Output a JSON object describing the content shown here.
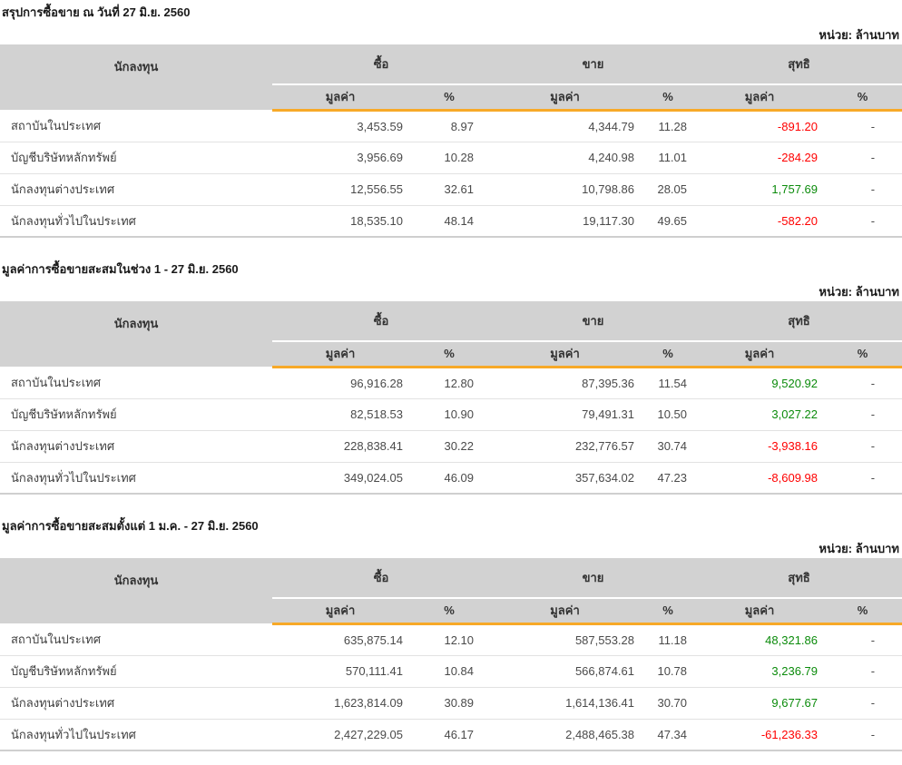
{
  "columns": {
    "investor": "นักลงทุน",
    "buy": "ซื้อ",
    "sell": "ขาย",
    "net": "สุทธิ",
    "value": "มูลค่า",
    "percent": "%"
  },
  "colors": {
    "header_bg": "#D2D2D2",
    "accent_orange": "#F7A928",
    "negative_red": "#FF0000",
    "positive_green": "#0B8B0B"
  },
  "tables": [
    {
      "title": "สรุปการซื้อขาย ณ วันที่ 27 มิ.ย. 2560",
      "unit": "หน่วย: ล้านบาท",
      "rows": [
        {
          "investor": "สถาบันในประเทศ",
          "buy_value": "3,453.59",
          "buy_pct": "8.97",
          "sell_value": "4,344.79",
          "sell_pct": "11.28",
          "net_value": "-891.20",
          "net_pct": "-",
          "net_class": "neg"
        },
        {
          "investor": "บัญชีบริษัทหลักทรัพย์",
          "buy_value": "3,956.69",
          "buy_pct": "10.28",
          "sell_value": "4,240.98",
          "sell_pct": "11.01",
          "net_value": "-284.29",
          "net_pct": "-",
          "net_class": "neg"
        },
        {
          "investor": "นักลงทุนต่างประเทศ",
          "buy_value": "12,556.55",
          "buy_pct": "32.61",
          "sell_value": "10,798.86",
          "sell_pct": "28.05",
          "net_value": "1,757.69",
          "net_pct": "-",
          "net_class": "pos"
        },
        {
          "investor": "นักลงทุนทั่วไปในประเทศ",
          "buy_value": "18,535.10",
          "buy_pct": "48.14",
          "sell_value": "19,117.30",
          "sell_pct": "49.65",
          "net_value": "-582.20",
          "net_pct": "-",
          "net_class": "neg"
        }
      ]
    },
    {
      "title": "มูลค่าการซื้อขายสะสมในช่วง 1 - 27 มิ.ย. 2560",
      "unit": "หน่วย: ล้านบาท",
      "rows": [
        {
          "investor": "สถาบันในประเทศ",
          "buy_value": "96,916.28",
          "buy_pct": "12.80",
          "sell_value": "87,395.36",
          "sell_pct": "11.54",
          "net_value": "9,520.92",
          "net_pct": "-",
          "net_class": "pos"
        },
        {
          "investor": "บัญชีบริษัทหลักทรัพย์",
          "buy_value": "82,518.53",
          "buy_pct": "10.90",
          "sell_value": "79,491.31",
          "sell_pct": "10.50",
          "net_value": "3,027.22",
          "net_pct": "-",
          "net_class": "pos"
        },
        {
          "investor": "นักลงทุนต่างประเทศ",
          "buy_value": "228,838.41",
          "buy_pct": "30.22",
          "sell_value": "232,776.57",
          "sell_pct": "30.74",
          "net_value": "-3,938.16",
          "net_pct": "-",
          "net_class": "neg"
        },
        {
          "investor": "นักลงทุนทั่วไปในประเทศ",
          "buy_value": "349,024.05",
          "buy_pct": "46.09",
          "sell_value": "357,634.02",
          "sell_pct": "47.23",
          "net_value": "-8,609.98",
          "net_pct": "-",
          "net_class": "neg"
        }
      ]
    },
    {
      "title": "มูลค่าการซื้อขายสะสมตั้งแต่ 1 ม.ค. - 27 มิ.ย. 2560",
      "unit": "หน่วย: ล้านบาท",
      "rows": [
        {
          "investor": "สถาบันในประเทศ",
          "buy_value": "635,875.14",
          "buy_pct": "12.10",
          "sell_value": "587,553.28",
          "sell_pct": "11.18",
          "net_value": "48,321.86",
          "net_pct": "-",
          "net_class": "pos"
        },
        {
          "investor": "บัญชีบริษัทหลักทรัพย์",
          "buy_value": "570,111.41",
          "buy_pct": "10.84",
          "sell_value": "566,874.61",
          "sell_pct": "10.78",
          "net_value": "3,236.79",
          "net_pct": "-",
          "net_class": "pos"
        },
        {
          "investor": "นักลงทุนต่างประเทศ",
          "buy_value": "1,623,814.09",
          "buy_pct": "30.89",
          "sell_value": "1,614,136.41",
          "sell_pct": "30.70",
          "net_value": "9,677.67",
          "net_pct": "-",
          "net_class": "pos"
        },
        {
          "investor": "นักลงทุนทั่วไปในประเทศ",
          "buy_value": "2,427,229.05",
          "buy_pct": "46.17",
          "sell_value": "2,488,465.38",
          "sell_pct": "47.34",
          "net_value": "-61,236.33",
          "net_pct": "-",
          "net_class": "neg"
        }
      ]
    }
  ]
}
